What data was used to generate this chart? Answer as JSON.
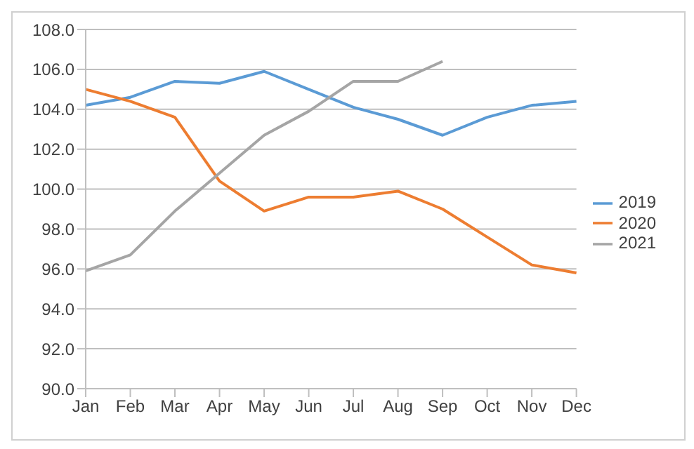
{
  "chart_data": {
    "type": "line",
    "categories": [
      "Jan",
      "Feb",
      "Mar",
      "Apr",
      "May",
      "Jun",
      "Jul",
      "Aug",
      "Sep",
      "Oct",
      "Nov",
      "Dec"
    ],
    "series": [
      {
        "name": "2019",
        "color": "#5b9bd5",
        "values": [
          104.2,
          104.6,
          105.4,
          105.3,
          105.9,
          105.0,
          104.1,
          103.5,
          102.7,
          103.6,
          104.2,
          104.4
        ]
      },
      {
        "name": "2020",
        "color": "#ed7d31",
        "values": [
          105.0,
          104.4,
          103.6,
          100.4,
          98.9,
          99.6,
          99.6,
          99.9,
          99.0,
          97.6,
          96.2,
          95.8
        ]
      },
      {
        "name": "2021",
        "color": "#a5a5a5",
        "values": [
          95.9,
          96.7,
          98.9,
          100.8,
          102.7,
          103.9,
          105.4,
          105.4,
          106.4,
          null,
          null,
          null
        ]
      }
    ],
    "ylim": [
      90,
      108
    ],
    "yticks": [
      {
        "value": 90,
        "label": "90.0"
      },
      {
        "value": 92,
        "label": "92.0"
      },
      {
        "value": 94,
        "label": "94.0"
      },
      {
        "value": 96,
        "label": "96.0"
      },
      {
        "value": 98,
        "label": "98.0"
      },
      {
        "value": 100,
        "label": "100.0"
      },
      {
        "value": 102,
        "label": "102.0"
      },
      {
        "value": 104,
        "label": "104.0"
      },
      {
        "value": 106,
        "label": "106.0"
      },
      {
        "value": 108,
        "label": "108.0"
      }
    ],
    "grid": "y",
    "legend": "right",
    "marker": "none",
    "line_style": "solid"
  }
}
